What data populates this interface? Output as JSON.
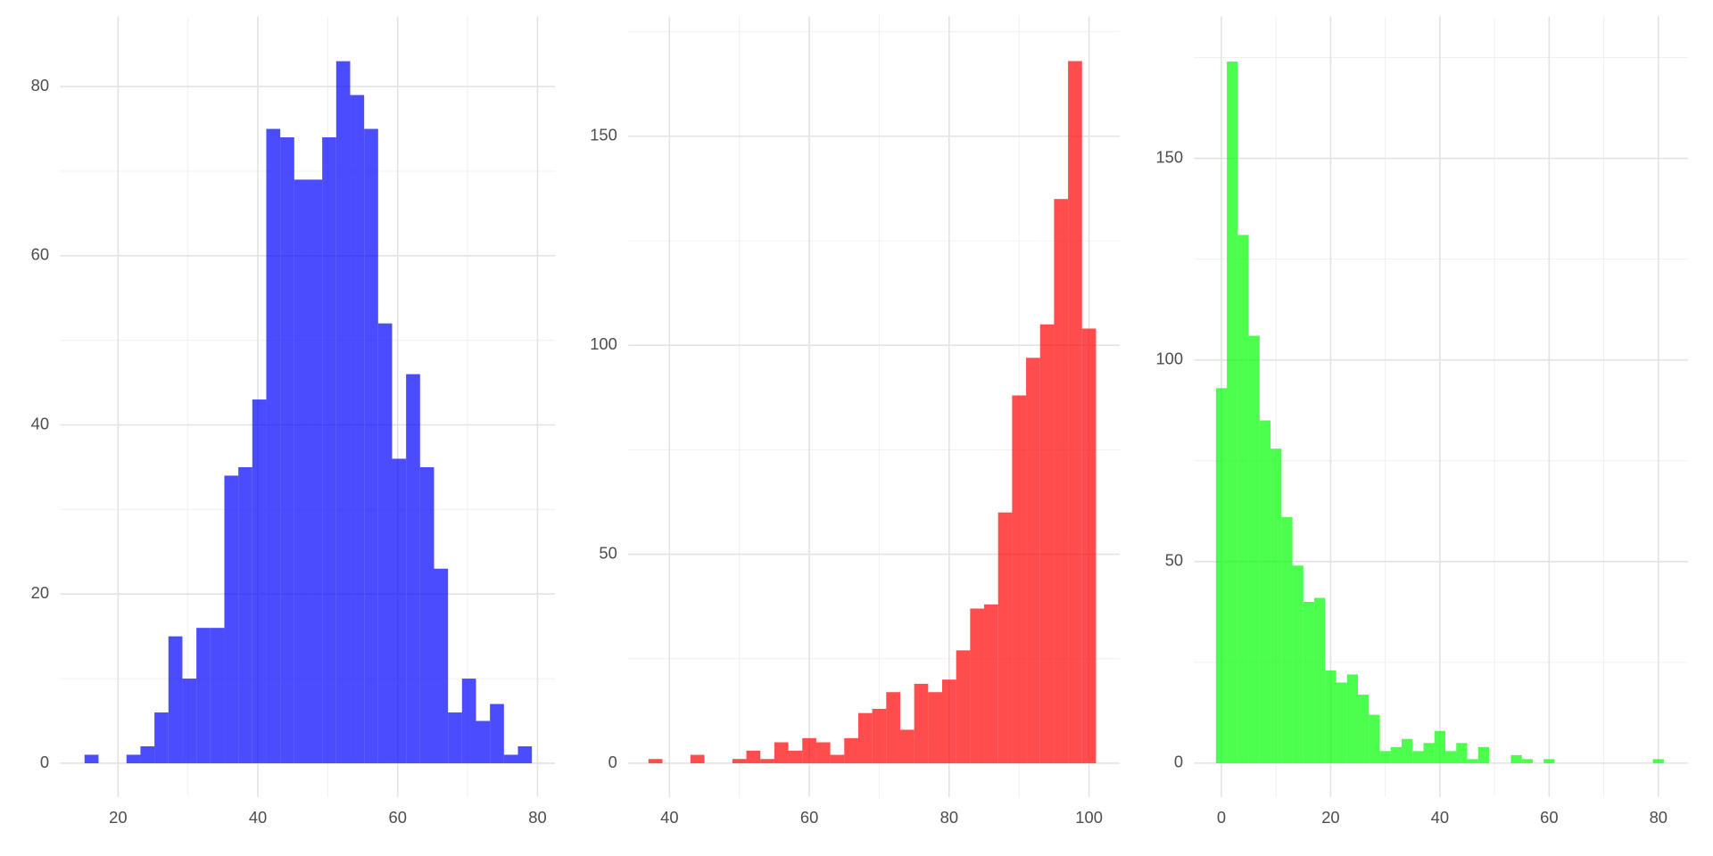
{
  "chart_data": [
    {
      "type": "histogram",
      "color": "#0000ff",
      "alpha": 0.7,
      "grid": true,
      "bins": [
        15.2,
        17.2,
        19.2,
        21.2,
        23.2,
        25.2,
        27.2,
        29.2,
        31.2,
        33.2,
        35.2,
        37.2,
        39.2,
        41.2,
        43.2,
        45.2,
        47.2,
        49.2,
        51.2,
        53.2,
        55.2,
        57.2,
        59.2,
        61.2,
        63.2,
        65.2,
        67.2,
        69.2,
        71.2,
        73.2,
        75.2,
        77.2,
        79.2
      ],
      "values": [
        1,
        0,
        0,
        1,
        2,
        6,
        15,
        10,
        16,
        16,
        34,
        35,
        43,
        75,
        74,
        69,
        69,
        74,
        83,
        79,
        75,
        52,
        36,
        46,
        35,
        23,
        6,
        10,
        5,
        7,
        1,
        2
      ],
      "xlim": [
        11.7,
        82.5
      ],
      "ylim": [
        -4,
        88.3
      ],
      "xticks": [
        20,
        40,
        60,
        80
      ],
      "yticks": [
        0,
        20,
        40,
        60,
        80
      ]
    },
    {
      "type": "histogram",
      "color": "#ff0000",
      "alpha": 0.7,
      "grid": true,
      "bins": [
        37,
        39,
        41,
        43,
        45,
        47,
        49,
        51,
        53,
        55,
        57,
        59,
        61,
        63,
        65,
        67,
        69,
        71,
        73,
        75,
        77,
        79,
        81,
        83,
        85,
        87,
        89,
        91,
        93,
        95,
        97,
        99,
        101
      ],
      "values": [
        1,
        0,
        0,
        2,
        0,
        0,
        1,
        3,
        1,
        5,
        3,
        6,
        5,
        2,
        6,
        12,
        13,
        17,
        8,
        19,
        17,
        20,
        27,
        37,
        38,
        60,
        88,
        97,
        105,
        135,
        168,
        104
      ],
      "xlim": [
        34.1,
        104.4
      ],
      "ylim": [
        -8.1,
        178.7
      ],
      "xticks": [
        40,
        60,
        80,
        100
      ],
      "yticks": [
        0,
        50,
        100,
        150
      ]
    },
    {
      "type": "histogram",
      "color": "#00ff00",
      "alpha": 0.7,
      "grid": true,
      "bins": [
        -1,
        1,
        3,
        5,
        7,
        9,
        11,
        13,
        15,
        17,
        19,
        21,
        23,
        25,
        27,
        29,
        31,
        33,
        35,
        37,
        39,
        41,
        43,
        45,
        47,
        49,
        51,
        53,
        55,
        57,
        59,
        61,
        63,
        65,
        67,
        69,
        71,
        73,
        75,
        77,
        79,
        81
      ],
      "values": [
        93,
        174,
        131,
        106,
        85,
        78,
        61,
        49,
        40,
        41,
        23,
        20,
        22,
        17,
        12,
        3,
        4,
        6,
        3,
        5,
        8,
        3,
        5,
        1,
        4,
        0,
        0,
        2,
        1,
        0,
        1,
        0,
        0,
        0,
        0,
        0,
        0,
        0,
        0,
        0,
        1
      ],
      "xlim": [
        -5,
        85.4
      ],
      "ylim": [
        -8.4,
        185.2
      ],
      "xticks": [
        0,
        20,
        40,
        60,
        80
      ],
      "yticks": [
        0,
        50,
        100,
        150
      ]
    }
  ]
}
